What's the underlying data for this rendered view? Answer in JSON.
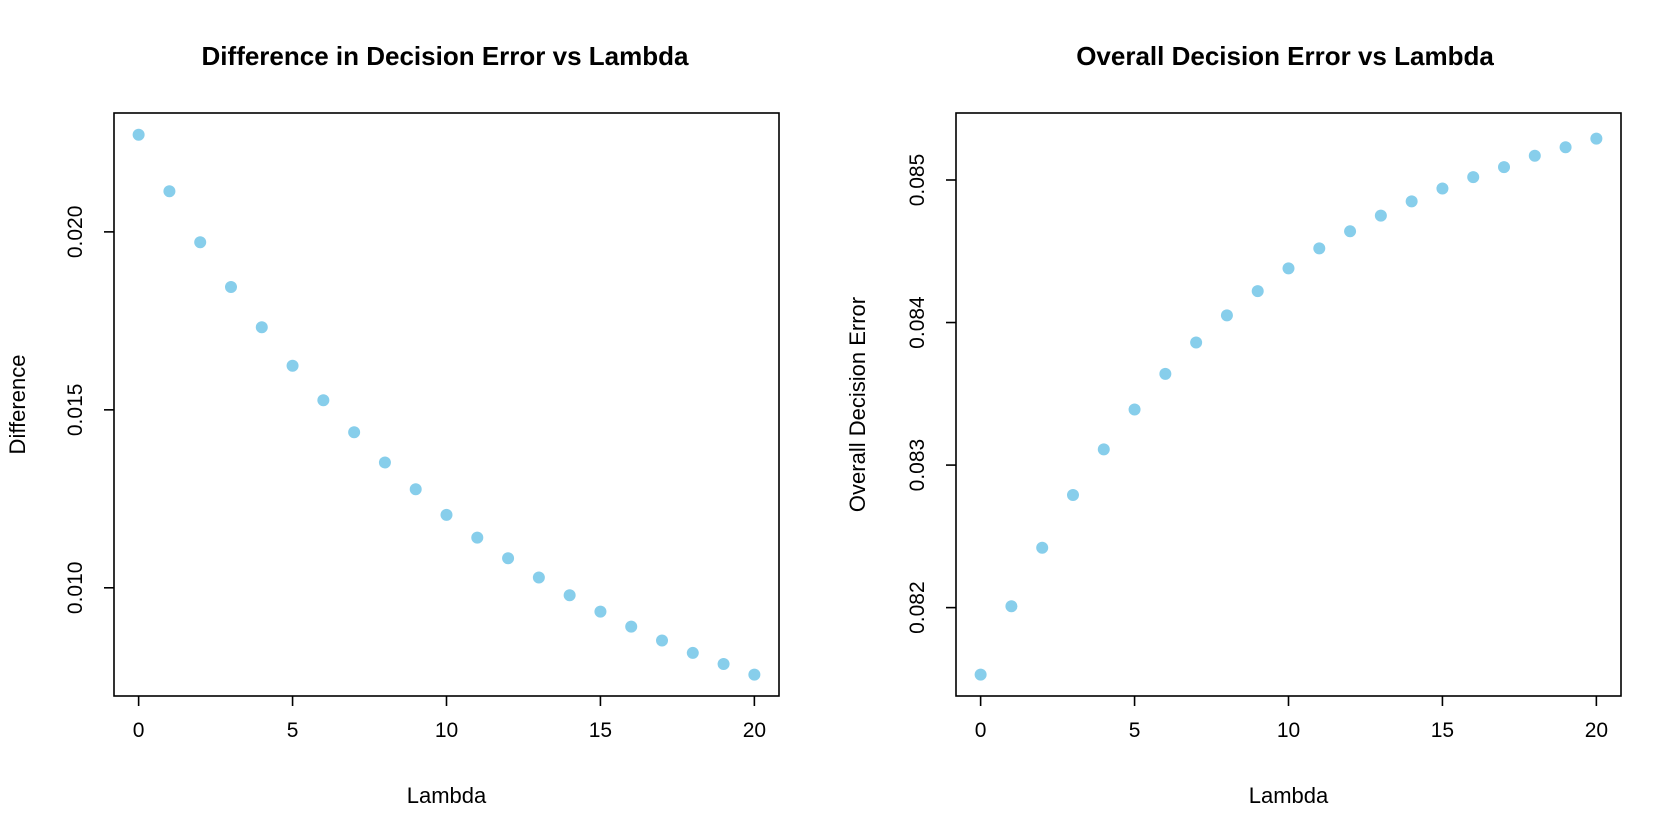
{
  "chart_data": [
    {
      "type": "scatter",
      "title": "Difference in Decision Error vs Lambda",
      "xlabel": "Lambda",
      "ylabel": "Difference",
      "xlim": [
        -0.8,
        20.8
      ],
      "ylim": [
        0.00696,
        0.02334
      ],
      "xticks": [
        0,
        5,
        10,
        15,
        20
      ],
      "xtick_labels": [
        "0",
        "5",
        "10",
        "15",
        "20"
      ],
      "yticks": [
        0.01,
        0.015,
        0.02
      ],
      "ytick_labels": [
        "0.010",
        "0.015",
        "0.020"
      ],
      "marker_color": "#87CEEB",
      "x": [
        0,
        1,
        2,
        3,
        4,
        5,
        6,
        7,
        8,
        9,
        10,
        11,
        12,
        13,
        14,
        15,
        16,
        17,
        18,
        19,
        20
      ],
      "y": [
        0.02273,
        0.02114,
        0.01971,
        0.01845,
        0.01732,
        0.01624,
        0.01527,
        0.01437,
        0.01352,
        0.01277,
        0.01205,
        0.01141,
        0.01083,
        0.01029,
        0.00979,
        0.00933,
        0.00891,
        0.00852,
        0.00817,
        0.00786,
        0.00756
      ]
    },
    {
      "type": "scatter",
      "title": "Overall Decision Error vs Lambda",
      "xlabel": "Lambda",
      "ylabel": "Overall Decision Error",
      "xlim": [
        -0.8,
        20.8
      ],
      "ylim": [
        0.08138,
        0.08547
      ],
      "xticks": [
        0,
        5,
        10,
        15,
        20
      ],
      "xtick_labels": [
        "0",
        "5",
        "10",
        "15",
        "20"
      ],
      "yticks": [
        0.082,
        0.083,
        0.084,
        0.085
      ],
      "ytick_labels": [
        "0.082",
        "0.083",
        "0.084",
        "0.085"
      ],
      "marker_color": "#87CEEB",
      "x": [
        0,
        1,
        2,
        3,
        4,
        5,
        6,
        7,
        8,
        9,
        10,
        11,
        12,
        13,
        14,
        15,
        16,
        17,
        18,
        19,
        20
      ],
      "y": [
        0.08153,
        0.08201,
        0.08242,
        0.08279,
        0.08311,
        0.08339,
        0.08364,
        0.08386,
        0.08405,
        0.08422,
        0.08438,
        0.08452,
        0.08464,
        0.08475,
        0.08485,
        0.08494,
        0.08502,
        0.08509,
        0.08517,
        0.08523,
        0.08529
      ]
    }
  ]
}
